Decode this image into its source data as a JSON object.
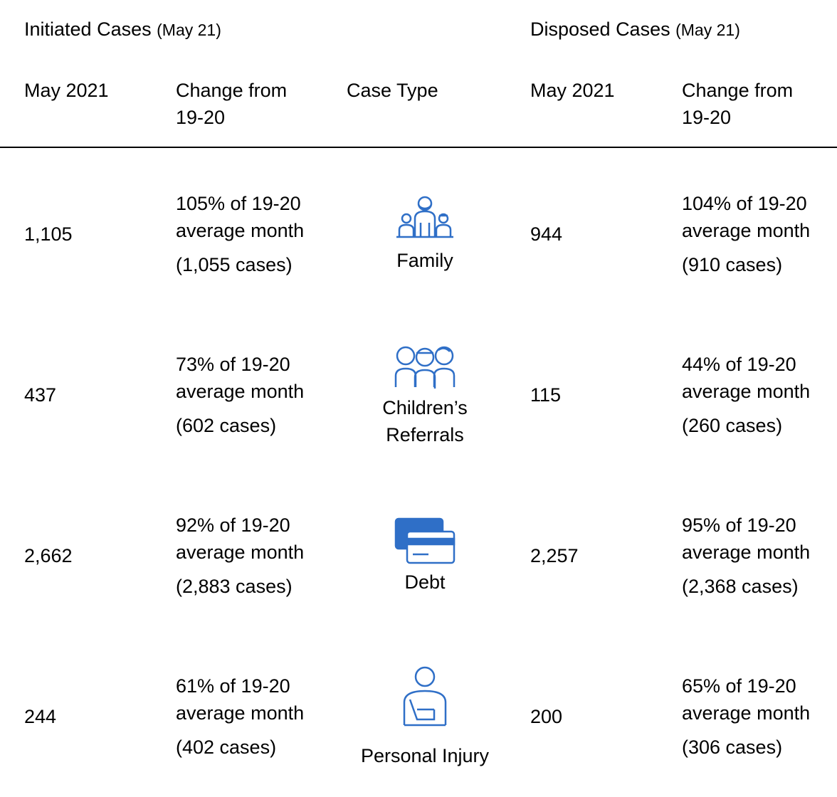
{
  "header": {
    "initiated": {
      "title": "Initiated Cases",
      "period": "(May 21)"
    },
    "disposed": {
      "title": "Disposed Cases",
      "period": "(May 21)"
    }
  },
  "columns": [
    "May 2021",
    "Change from 19-20",
    "Case Type",
    "May 2021",
    "Change from 19-20"
  ],
  "rows": [
    {
      "initiated": "1,105",
      "initiated_change": "105% of 19-20 average month",
      "initiated_avg": "(1,055 cases)",
      "case_type": "Family",
      "disposed": "944",
      "disposed_change": "104% of 19-20 average month",
      "disposed_avg": "(910 cases)"
    },
    {
      "initiated": "437",
      "initiated_change": "73% of 19-20 average month",
      "initiated_avg": "(602 cases)",
      "case_type": "Children’s Referrals",
      "disposed": "115",
      "disposed_change": "44% of 19-20 average month",
      "disposed_avg": "(260 cases)"
    },
    {
      "initiated": "2,662",
      "initiated_change": "92% of 19-20 average month",
      "initiated_avg": "(2,883 cases)",
      "case_type": "Debt",
      "disposed": "2,257",
      "disposed_change": "95% of 19-20 average month",
      "disposed_avg": "(2,368 cases)"
    },
    {
      "initiated": "244",
      "initiated_change": "61% of 19-20 average month",
      "initiated_avg": "(402 cases)",
      "case_type": "Personal Injury",
      "disposed": "200",
      "disposed_change": "65% of 19-20 average month",
      "disposed_avg": "(306 cases)"
    }
  ]
}
